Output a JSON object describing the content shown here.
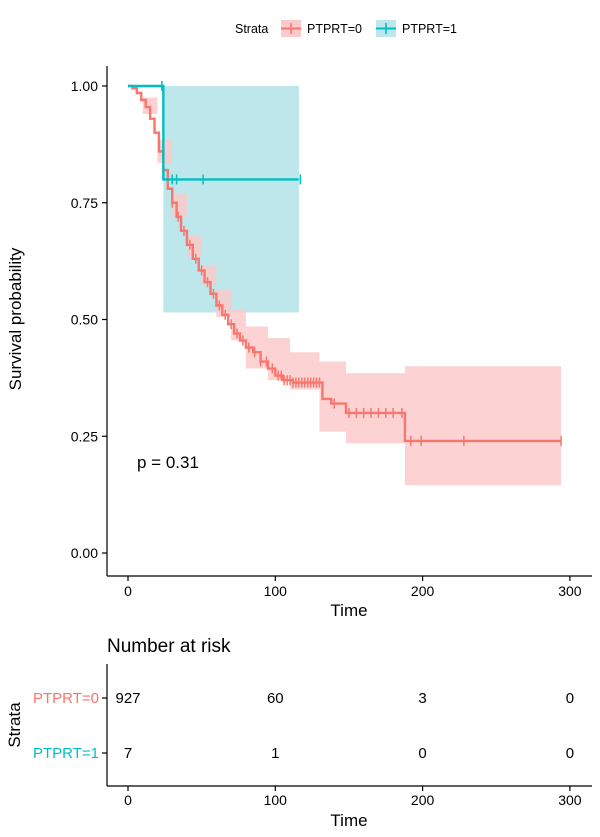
{
  "chart_data": [
    {
      "type": "line",
      "subtype": "kaplan-meier",
      "title": "",
      "xlabel": "Time",
      "ylabel": "Survival probability",
      "xlim": [
        0,
        300
      ],
      "ylim": [
        0,
        1
      ],
      "x_ticks": [
        "0",
        "100",
        "200",
        "300"
      ],
      "y_ticks": [
        "0.00",
        "0.25",
        "0.50",
        "0.75",
        "1.00"
      ],
      "grid": false,
      "legend": {
        "title": "Strata",
        "position": "top"
      },
      "annotation": "p = 0.31",
      "series": [
        {
          "name": "PTPRT=0",
          "color": "#F8766D",
          "band_color": "#FCCACA",
          "steps": [
            [
              0,
              1.0
            ],
            [
              3,
              0.995
            ],
            [
              6,
              0.985
            ],
            [
              9,
              0.97
            ],
            [
              12,
              0.955
            ],
            [
              15,
              0.93
            ],
            [
              18,
              0.9
            ],
            [
              21,
              0.86
            ],
            [
              24,
              0.82
            ],
            [
              27,
              0.78
            ],
            [
              30,
              0.75
            ],
            [
              33,
              0.72
            ],
            [
              36,
              0.69
            ],
            [
              40,
              0.66
            ],
            [
              44,
              0.63
            ],
            [
              48,
              0.605
            ],
            [
              52,
              0.58
            ],
            [
              56,
              0.555
            ],
            [
              60,
              0.53
            ],
            [
              64,
              0.51
            ],
            [
              68,
              0.49
            ],
            [
              72,
              0.47
            ],
            [
              76,
              0.455
            ],
            [
              80,
              0.44
            ],
            [
              85,
              0.43
            ],
            [
              90,
              0.41
            ],
            [
              95,
              0.395
            ],
            [
              100,
              0.38
            ],
            [
              105,
              0.37
            ],
            [
              112,
              0.365
            ],
            [
              132,
              0.33
            ],
            [
              138,
              0.32
            ],
            [
              148,
              0.3
            ],
            [
              188,
              0.24
            ],
            [
              294,
              0.24
            ]
          ],
          "ci_upper": [
            [
              0,
              1.0
            ],
            [
              10,
              0.975
            ],
            [
              20,
              0.885
            ],
            [
              30,
              0.77
            ],
            [
              40,
              0.68
            ],
            [
              50,
              0.615
            ],
            [
              60,
              0.565
            ],
            [
              70,
              0.52
            ],
            [
              80,
              0.485
            ],
            [
              95,
              0.46
            ],
            [
              110,
              0.43
            ],
            [
              130,
              0.41
            ],
            [
              148,
              0.385
            ],
            [
              188,
              0.4
            ],
            [
              294,
              0.4
            ]
          ],
          "ci_lower": [
            [
              0,
              1.0
            ],
            [
              10,
              0.94
            ],
            [
              20,
              0.835
            ],
            [
              30,
              0.72
            ],
            [
              40,
              0.635
            ],
            [
              50,
              0.575
            ],
            [
              60,
              0.505
            ],
            [
              70,
              0.455
            ],
            [
              80,
              0.395
            ],
            [
              95,
              0.37
            ],
            [
              110,
              0.35
            ],
            [
              130,
              0.26
            ],
            [
              148,
              0.235
            ],
            [
              188,
              0.145
            ],
            [
              294,
              0.145
            ]
          ],
          "censor_x": [
            30,
            34,
            38,
            42,
            46,
            50,
            54,
            58,
            62,
            66,
            70,
            74,
            78,
            82,
            86,
            90,
            94,
            98,
            102,
            104,
            106,
            108,
            110,
            112,
            114,
            116,
            118,
            120,
            122,
            124,
            126,
            128,
            130,
            140,
            150,
            155,
            160,
            165,
            170,
            175,
            180,
            186,
            192,
            199,
            228,
            294
          ],
          "risk": [
            "927",
            "60",
            "3",
            "0"
          ]
        },
        {
          "name": "PTPRT=1",
          "color": "#00BFC4",
          "band_color": "#BDE7EA",
          "steps": [
            [
              0,
              1.0
            ],
            [
              24,
              0.8
            ],
            [
              116,
              0.8
            ]
          ],
          "ci_upper": [
            [
              24,
              1.0
            ],
            [
              116,
              1.0
            ]
          ],
          "ci_lower": [
            [
              24,
              0.515
            ],
            [
              116,
              0.515
            ]
          ],
          "censor_x": [
            23,
            30,
            33,
            51,
            117
          ],
          "risk": [
            "7",
            "1",
            "0",
            "0"
          ]
        }
      ]
    },
    {
      "type": "table",
      "title": "Number at risk",
      "xlabel": "Time",
      "ylabel": "Strata",
      "x_ticks": [
        "0",
        "100",
        "200",
        "300"
      ],
      "rows": [
        "PTPRT=0",
        "PTPRT=1"
      ]
    }
  ]
}
